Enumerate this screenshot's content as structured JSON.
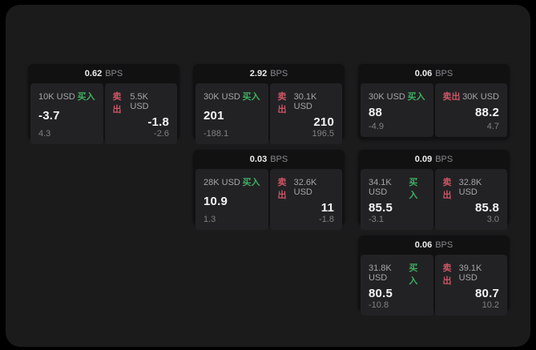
{
  "labels": {
    "bps": "BPS",
    "buy": "买入",
    "sell": "卖出"
  },
  "colors": {
    "panel": "#1b1b1c",
    "card": "#111112",
    "tile": "#222224",
    "buy_green": "#3fae62",
    "sell_red": "#cc5565"
  },
  "cards": [
    {
      "bps": "0.62",
      "buy": {
        "amount": "10K USD",
        "price": "-3.7",
        "delta": "4.3"
      },
      "sell": {
        "amount": "5.5K USD",
        "price": "-1.8",
        "delta": "-2.6"
      }
    },
    {
      "bps": "2.92",
      "buy": {
        "amount": "30K USD",
        "price": "201",
        "delta": "-188.1"
      },
      "sell": {
        "amount": "30.1K USD",
        "price": "210",
        "delta": "196.5"
      }
    },
    {
      "bps": "0.06",
      "buy": {
        "amount": "30K USD",
        "price": "88",
        "delta": "-4.9"
      },
      "sell": {
        "amount": "30K USD",
        "price": "88.2",
        "delta": "4.7"
      }
    },
    {
      "bps": "0.03",
      "buy": {
        "amount": "28K USD",
        "price": "10.9",
        "delta": "1.3"
      },
      "sell": {
        "amount": "32.6K USD",
        "price": "11",
        "delta": "-1.8"
      }
    },
    {
      "bps": "0.09",
      "buy": {
        "amount": "34.1K USD",
        "price": "85.5",
        "delta": "-3.1"
      },
      "sell": {
        "amount": "32.8K USD",
        "price": "85.8",
        "delta": "3.0"
      }
    },
    {
      "bps": "0.06",
      "buy": {
        "amount": "31.8K USD",
        "price": "80.5",
        "delta": "-10.8"
      },
      "sell": {
        "amount": "39.1K USD",
        "price": "80.7",
        "delta": "10.2"
      }
    }
  ]
}
